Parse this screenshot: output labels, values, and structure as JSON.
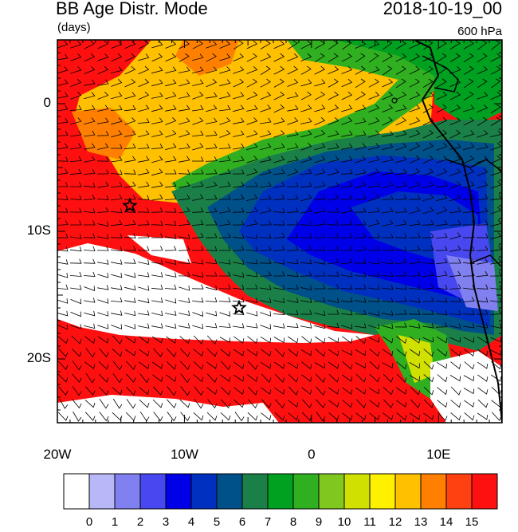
{
  "header": {
    "title": "BB Age Distr. Mode",
    "units": "(days)",
    "datetime": "2018-10-19_00",
    "level": "600 hPa"
  },
  "map": {
    "lon_range": [
      -20,
      15
    ],
    "lat_range": [
      -25,
      5
    ],
    "lon_ticks": [
      {
        "value": -20,
        "label": "20W"
      },
      {
        "value": -10,
        "label": "10W"
      },
      {
        "value": 0,
        "label": "0"
      },
      {
        "value": 10,
        "label": "10E"
      }
    ],
    "lat_ticks": [
      {
        "value": 0,
        "label": "0"
      },
      {
        "value": -10,
        "label": "10S"
      },
      {
        "value": -20,
        "label": "20S"
      }
    ],
    "markers": [
      {
        "name": "star",
        "lon": -14.3,
        "lat": -8.0
      },
      {
        "name": "star",
        "lon": -5.7,
        "lat": -16.0
      }
    ]
  },
  "colorbar": {
    "labels": [
      "0",
      "1",
      "2",
      "3",
      "4",
      "5",
      "6",
      "7",
      "8",
      "9",
      "10",
      "11",
      "12",
      "13",
      "14",
      "15"
    ],
    "colors": [
      "#ffffff",
      "#b8b8f8",
      "#8080f0",
      "#4848f0",
      "#0000e8",
      "#0030c0",
      "#00508a",
      "#1a8048",
      "#00a020",
      "#30b020",
      "#80c820",
      "#d0e000",
      "#fff000",
      "#ffc000",
      "#ff8000",
      "#ff4010",
      "#ff1010"
    ]
  }
}
